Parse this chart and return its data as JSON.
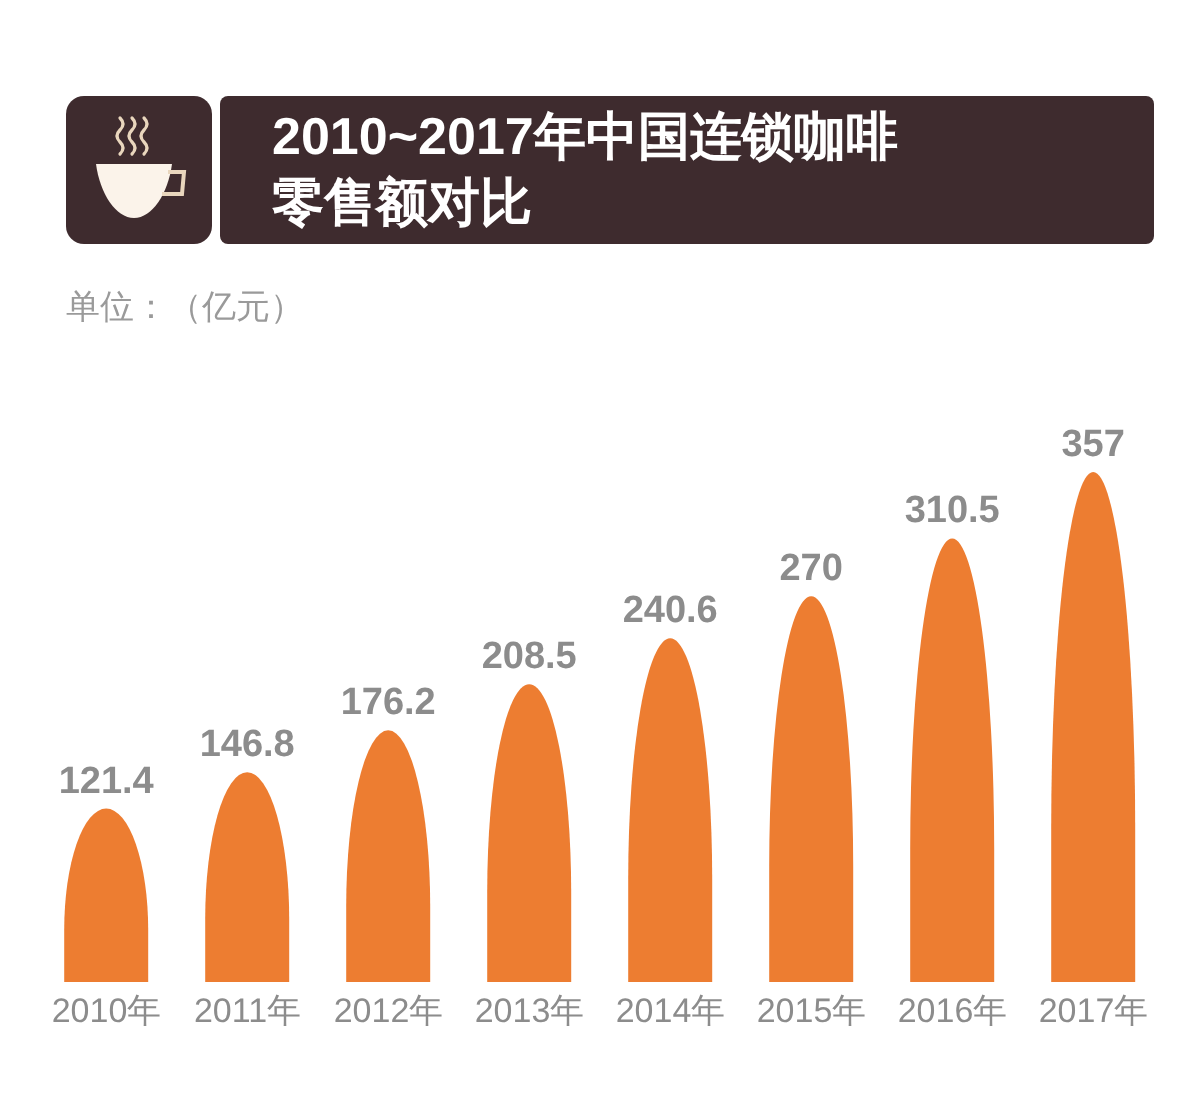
{
  "chart_data": {
    "type": "bar",
    "title": "2010~2017年中国连锁咖啡零售额对比",
    "subtitle": "单位：（亿元）",
    "categories": [
      "2010年",
      "2011年",
      "2012年",
      "2013年",
      "2014年",
      "2015年",
      "2016年",
      "2017年"
    ],
    "values": [
      121.4,
      146.8,
      176.2,
      208.5,
      240.6,
      270,
      310.5,
      357
    ],
    "color": "#ed7d31",
    "data_labels": true,
    "tick_labels": "x"
  }
}
